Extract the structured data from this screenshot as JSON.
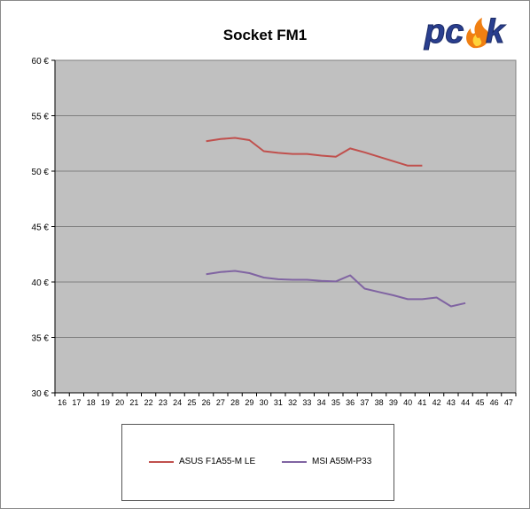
{
  "chart_data": {
    "type": "line",
    "title": "Socket FM1",
    "xlabel": "",
    "ylabel": "",
    "x": [
      16,
      17,
      18,
      19,
      20,
      21,
      22,
      23,
      24,
      25,
      26,
      27,
      28,
      29,
      30,
      31,
      32,
      33,
      34,
      35,
      36,
      37,
      38,
      39,
      40,
      41,
      42,
      43,
      44,
      45,
      46,
      47
    ],
    "ylim": [
      30,
      60
    ],
    "yticks": [
      30,
      35,
      40,
      45,
      50,
      55,
      60
    ],
    "ytick_labels": [
      "30 €",
      "35 €",
      "40 €",
      "45 €",
      "50 €",
      "55 €",
      "60 €"
    ],
    "grid": true,
    "legend_position": "bottom",
    "series": [
      {
        "name": "ASUS F1A55-M LE",
        "color": "#c0504d",
        "points": [
          [
            26,
            52.7
          ],
          [
            27,
            52.9
          ],
          [
            28,
            53.0
          ],
          [
            29,
            52.8
          ],
          [
            30,
            51.8
          ],
          [
            31,
            51.65
          ],
          [
            32,
            51.55
          ],
          [
            33,
            51.55
          ],
          [
            34,
            51.4
          ],
          [
            35,
            51.3
          ],
          [
            36,
            52.05
          ],
          [
            37,
            51.7
          ],
          [
            38,
            51.3
          ],
          [
            39,
            50.9
          ],
          [
            40,
            50.5
          ],
          [
            41,
            50.5
          ]
        ]
      },
      {
        "name": "MSI A55M-P33",
        "color": "#8064a2",
        "points": [
          [
            26,
            40.7
          ],
          [
            27,
            40.9
          ],
          [
            28,
            41.0
          ],
          [
            29,
            40.8
          ],
          [
            30,
            40.4
          ],
          [
            31,
            40.25
          ],
          [
            32,
            40.2
          ],
          [
            33,
            40.2
          ],
          [
            34,
            40.1
          ],
          [
            35,
            40.05
          ],
          [
            36,
            40.6
          ],
          [
            37,
            39.4
          ],
          [
            38,
            39.1
          ],
          [
            39,
            38.8
          ],
          [
            40,
            38.45
          ],
          [
            41,
            38.45
          ],
          [
            42,
            38.6
          ],
          [
            43,
            37.8
          ],
          [
            44,
            38.1
          ]
        ]
      }
    ]
  },
  "logo": {
    "text": "pcsk",
    "colors": {
      "main": "#2a3f8f",
      "flame": "#f07f12"
    }
  }
}
